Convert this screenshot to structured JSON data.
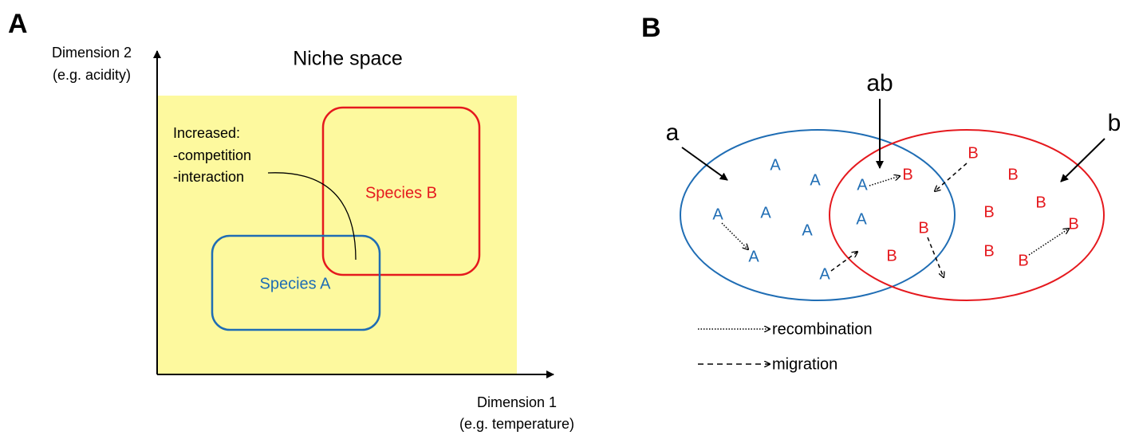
{
  "panel_a": {
    "label": "A",
    "title": "Niche space",
    "y_axis": [
      "Dimension 2",
      "(e.g. acidity)"
    ],
    "x_axis": [
      "Dimension 1",
      "(e.g. temperature)"
    ],
    "annotation": [
      "Increased:",
      "-competition",
      "-interaction"
    ],
    "species": [
      "Species A",
      "Species B"
    ]
  },
  "panel_b": {
    "label": "B",
    "regions": [
      "a",
      "ab",
      "b"
    ],
    "individuals_a": [
      "A",
      "A",
      "A",
      "A",
      "A",
      "A",
      "A",
      "A",
      "A"
    ],
    "individuals_b": [
      "B",
      "B",
      "B",
      "B",
      "B",
      "B",
      "B",
      "B",
      "B",
      "B"
    ],
    "legend": [
      "recombination",
      "migration"
    ]
  }
}
